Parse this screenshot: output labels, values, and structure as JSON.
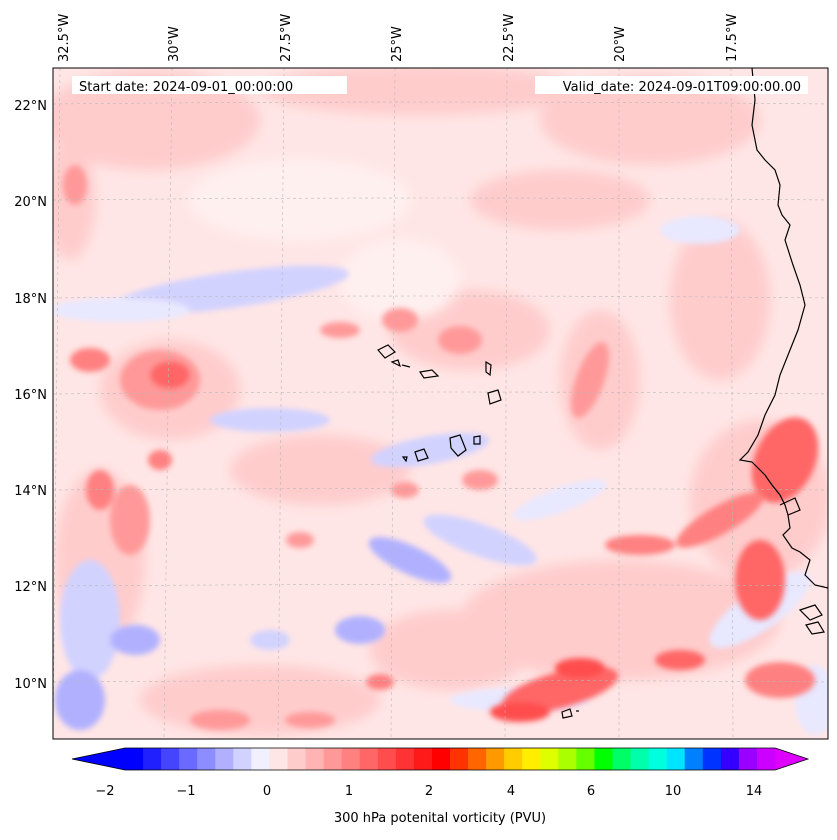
{
  "map": {
    "start_date": "Start date: 2024-09-01_00:00:00",
    "valid_date": "Valid_date: 2024-09-01T09:00:00.00",
    "lon_labels": [
      "32.5°W",
      "30°W",
      "27.5°W",
      "25°W",
      "22.5°W",
      "20°W",
      "17.5°W"
    ],
    "lat_labels": [
      "22°N",
      "20°N",
      "18°N",
      "16°N",
      "14°N",
      "12°N",
      "10°N"
    ],
    "extent": {
      "lon_min": -32.6,
      "lon_max": -15.8,
      "lat_min": 8.9,
      "lat_max": 22.8
    }
  },
  "colorbar": {
    "title": "300 hPa potenital vorticity (PVU)",
    "tick_labels": [
      "−2",
      "−1",
      "0",
      "1",
      "2",
      "4",
      "6",
      "10",
      "14"
    ],
    "colors": [
      "#0000ff",
      "#2020ff",
      "#4545ff",
      "#6a6aff",
      "#8d8dff",
      "#b0b0ff",
      "#d2d2ff",
      "#f0f0ff",
      "#ffe6e6",
      "#ffcccc",
      "#ffb3b3",
      "#ff9999",
      "#ff8080",
      "#ff6666",
      "#ff4d4d",
      "#ff3333",
      "#ff1a1a",
      "#ff0000",
      "#ff3300",
      "#ff6600",
      "#ff9900",
      "#ffcc00",
      "#ffee00",
      "#ddff00",
      "#aaff00",
      "#66ff00",
      "#00ff00",
      "#00ff66",
      "#00ffaa",
      "#00ffdd",
      "#00e5ff",
      "#0080ff",
      "#0033ff",
      "#3300ff",
      "#9900ff",
      "#cc00ff"
    ],
    "over_color": "#dd00ff",
    "under_color": "#0000ff"
  }
}
